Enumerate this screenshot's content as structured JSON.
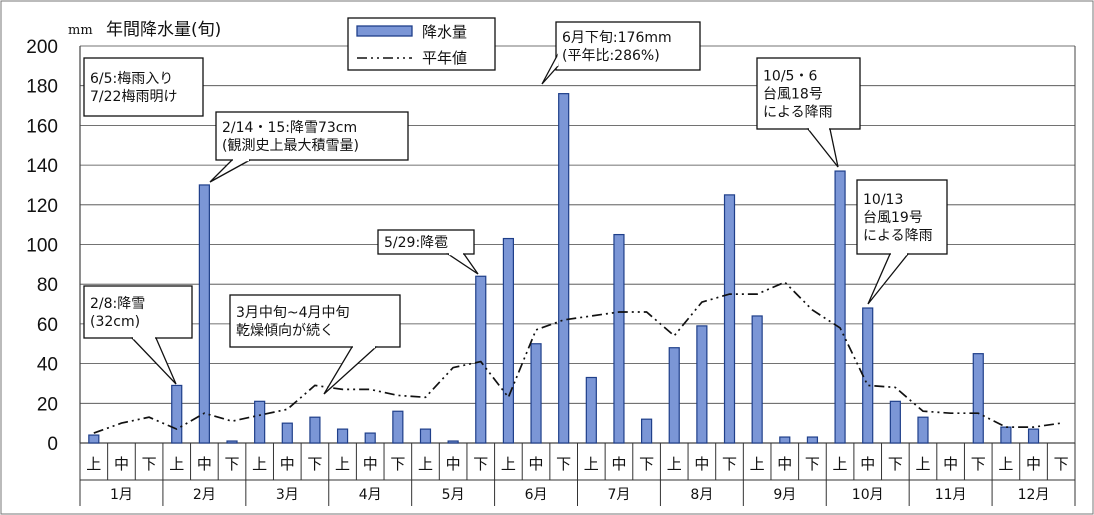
{
  "chart_data": {
    "type": "bar",
    "title": "年間降水量(旬)",
    "unit_label": "mm",
    "ylim": [
      0,
      200
    ],
    "y_ticks": [
      "0",
      "20",
      "40",
      "60",
      "80",
      "100",
      "120",
      "140",
      "160",
      "180",
      "200"
    ],
    "grid": true,
    "legend_position": "top-center",
    "months": [
      "1月",
      "2月",
      "3月",
      "4月",
      "5月",
      "6月",
      "7月",
      "8月",
      "9月",
      "10月",
      "11月",
      "12月"
    ],
    "periods": [
      "上",
      "中",
      "下"
    ],
    "series": [
      {
        "name": "降水量",
        "type": "bar",
        "color": "#7b96d6",
        "values": [
          4,
          0,
          0,
          29,
          130,
          1,
          21,
          10,
          13,
          7,
          5,
          16,
          7,
          1,
          84,
          103,
          50,
          176,
          33,
          105,
          12,
          48,
          59,
          125,
          64,
          3,
          3,
          137,
          68,
          21,
          13,
          0,
          45,
          8,
          7,
          0
        ]
      },
      {
        "name": "平年値",
        "type": "line",
        "style": "dash-dot-dot",
        "color": "#111111",
        "values": [
          5,
          10,
          13,
          7,
          15,
          11,
          14,
          17,
          29,
          27,
          27,
          24,
          23,
          38,
          41,
          23,
          57,
          62,
          64,
          66,
          66,
          54,
          71,
          75,
          75,
          81,
          67,
          58,
          29,
          28,
          16,
          15,
          15,
          8,
          8,
          10
        ]
      }
    ],
    "annotations": [
      {
        "lines": [
          "6/5:梅雨入り",
          "7/22梅雨明け"
        ]
      },
      {
        "lines": [
          "2/14・15:降雪73cm",
          "(観測史上最大積雪量)"
        ]
      },
      {
        "lines": [
          "2/8:降雪",
          "(32cm)"
        ]
      },
      {
        "lines": [
          "3月中旬~4月中旬",
          "乾燥傾向が続く"
        ]
      },
      {
        "lines": [
          "5/29:降雹"
        ]
      },
      {
        "lines": [
          "6月下旬:176mm",
          "(平年比:286%)"
        ]
      },
      {
        "lines": [
          "10/5・6",
          "台風18号",
          "による降雨"
        ]
      },
      {
        "lines": [
          "10/13",
          "台風19号",
          "による降雨"
        ]
      }
    ]
  }
}
